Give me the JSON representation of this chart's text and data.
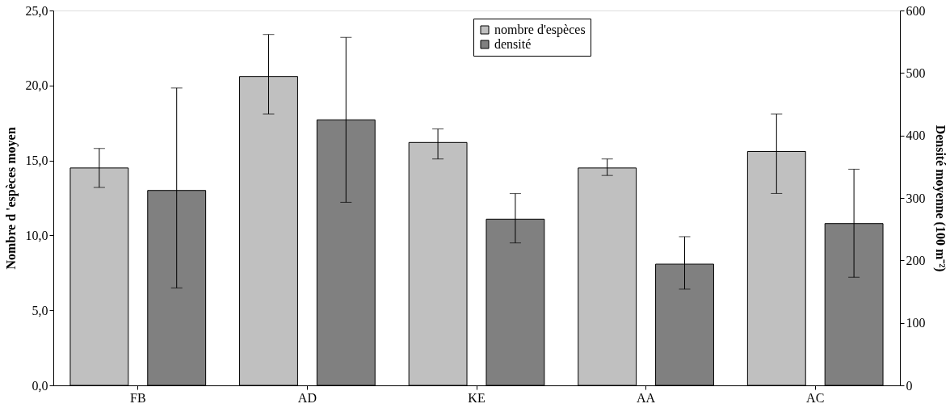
{
  "chart_data": {
    "type": "bar",
    "categories": [
      "FB",
      "AD",
      "KE",
      "AA",
      "AC"
    ],
    "ylabel": "Nombre d 'espèces moyen",
    "y2label": "Densité moyenne (100 m⁻²)",
    "ylim": [
      0,
      25
    ],
    "yticks": [
      {
        "value": 0,
        "label": "0,0"
      },
      {
        "value": 5,
        "label": "5,0"
      },
      {
        "value": 10,
        "label": "10,0"
      },
      {
        "value": 15,
        "label": "15,0"
      },
      {
        "value": 20,
        "label": "20,0"
      },
      {
        "value": 25,
        "label": "25,0"
      }
    ],
    "y2lim": [
      0,
      600
    ],
    "y2ticks": [
      0,
      100,
      200,
      300,
      400,
      500,
      600
    ],
    "series": [
      {
        "name": "nombre d'espèces",
        "color": "#c0c0c0",
        "values": [
          14.5,
          20.6,
          16.2,
          14.5,
          15.6
        ],
        "errors": [
          [
            13.2,
            15.8
          ],
          [
            18.1,
            23.4
          ],
          [
            15.1,
            17.1
          ],
          [
            14.0,
            15.1
          ],
          [
            12.8,
            18.1
          ]
        ]
      },
      {
        "name": "densité",
        "color": "#808080",
        "axis": "y2",
        "values": [
          312,
          425,
          266,
          194,
          259
        ],
        "errors": [
          [
            156,
            476
          ],
          [
            293,
            557
          ],
          [
            228,
            307
          ],
          [
            154,
            238
          ],
          [
            173,
            346
          ]
        ]
      }
    ],
    "legend": "top right",
    "grid": false
  }
}
